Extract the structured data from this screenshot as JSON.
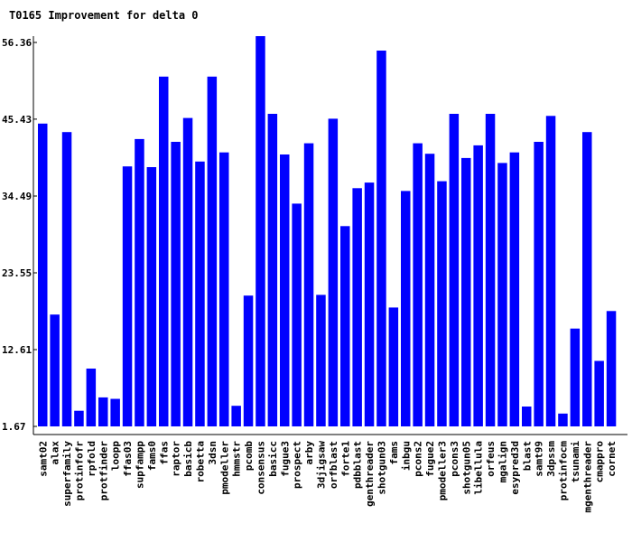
{
  "chart_data": {
    "type": "bar",
    "title": "T0165 Improvement for delta 0",
    "xlabel": "",
    "ylabel": "",
    "ylim": [
      0,
      56.36
    ],
    "yticks": [
      "56.36",
      "45.43",
      "34.49",
      "23.55",
      "12.61",
      "1.67"
    ],
    "grid": false,
    "bar_color": "#0000ff",
    "categories": [
      "samt02",
      "alax",
      "superfamily",
      "protinfofr",
      "rpfold",
      "protfinder",
      "loopp",
      "ffas03",
      "supfampp",
      "fams0",
      "ffas",
      "raptor",
      "basicb",
      "robetta",
      "3dsn",
      "pmodeller",
      "hmmstr",
      "pcomb",
      "consensus",
      "basicc",
      "fugue3",
      "prospect",
      "arby",
      "3djigsaw",
      "orfblast",
      "forte1",
      "pdbblast",
      "genthreader",
      "shotgun03",
      "fams",
      "inbgu",
      "pcons2",
      "fugue2",
      "pmodeller3",
      "pcons3",
      "shotgun05",
      "libellula",
      "orfeus",
      "mgalign",
      "esypred3d",
      "blast",
      "samt99",
      "3dpssm",
      "protinfocm",
      "tsunami",
      "mgenthreader",
      "cmappro",
      "cornet"
    ],
    "values": [
      44.8,
      17.6,
      43.6,
      3.9,
      9.9,
      5.8,
      5.6,
      38.7,
      42.6,
      38.6,
      51.5,
      42.2,
      45.6,
      39.4,
      51.5,
      40.7,
      4.6,
      20.3,
      58.0,
      46.2,
      40.4,
      33.4,
      42.0,
      20.4,
      45.5,
      30.2,
      35.6,
      36.4,
      55.2,
      18.6,
      35.2,
      42.0,
      40.5,
      36.6,
      46.2,
      39.9,
      41.7,
      46.2,
      39.2,
      40.7,
      4.5,
      42.2,
      45.9,
      3.5,
      15.6,
      43.6,
      11.0,
      18.1
    ]
  }
}
